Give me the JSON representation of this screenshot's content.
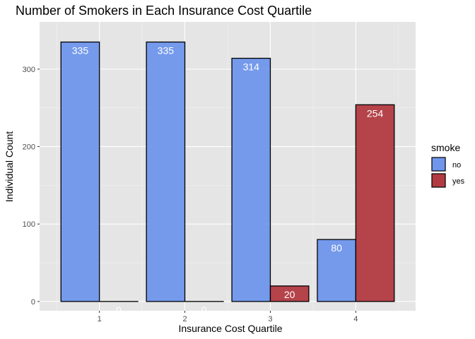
{
  "chart_data": {
    "type": "bar",
    "title": "Number of Smokers in Each Insurance Cost Quartile",
    "xlabel": "Insurance Cost Quartile",
    "ylabel": "Individual Count",
    "categories": [
      "1",
      "2",
      "3",
      "4"
    ],
    "series": [
      {
        "name": "no",
        "values": [
          335,
          335,
          314,
          80
        ],
        "color": "#6f96ec"
      },
      {
        "name": "yes",
        "values": [
          0,
          0,
          20,
          254
        ],
        "color": "#b23a41"
      }
    ],
    "yticks": [
      0,
      100,
      200,
      300
    ],
    "ylim": [
      -12,
      361
    ],
    "legend": {
      "title": "smoke",
      "position": "right"
    },
    "grid": true,
    "panel_background": "#e5e5e5"
  }
}
